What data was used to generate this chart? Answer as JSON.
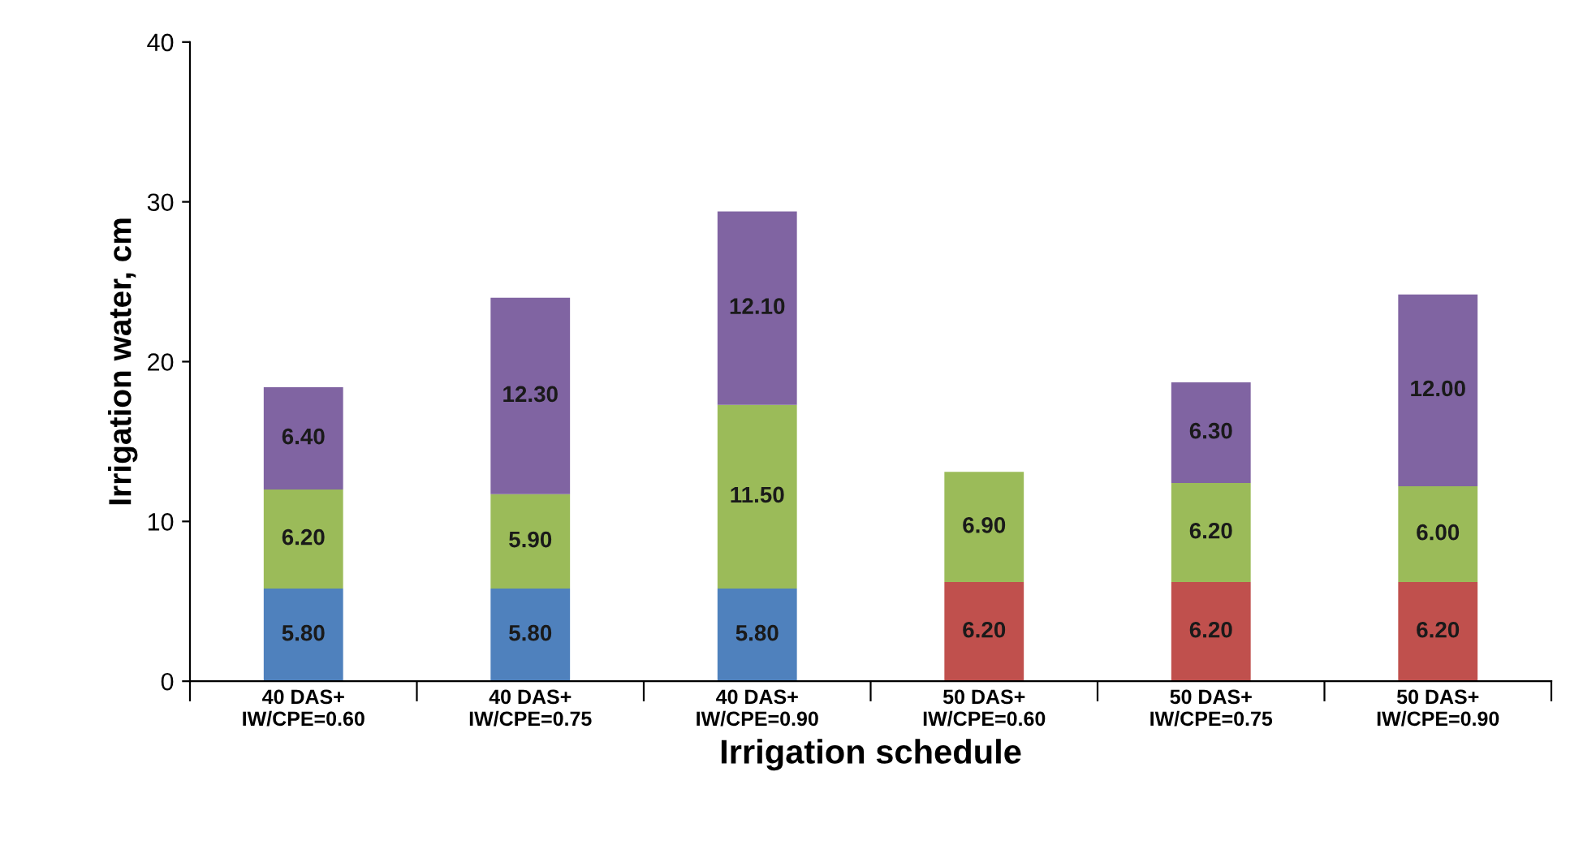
{
  "chart_data": {
    "type": "bar",
    "stacked": true,
    "xlabel": "Irrigation schedule",
    "ylabel": "Irrigation water, cm",
    "categories": [
      "40 DAS+\nIW/CPE=0.60",
      "40 DAS+\nIW/CPE=0.75",
      "40 DAS+\nIW/CPE=0.90",
      "50 DAS+\nIW/CPE=0.60",
      "50 DAS+\nIW/CPE=0.75",
      "50 DAS+\nIW/CPE=0.90"
    ],
    "series": [
      {
        "colors": [
          "#4f81bd",
          "#4f81bd",
          "#4f81bd",
          "#c0504d",
          "#c0504d",
          "#c0504d"
        ],
        "values": [
          5.8,
          5.8,
          5.8,
          6.2,
          6.2,
          6.2
        ],
        "value_labels": [
          "5.80",
          "5.80",
          "5.80",
          "6.20",
          "6.20",
          "6.20"
        ]
      },
      {
        "color": "#9bbb59",
        "values": [
          6.2,
          5.9,
          11.5,
          6.9,
          6.2,
          6.0
        ],
        "value_labels": [
          "6.20",
          "5.90",
          "11.50",
          "6.90",
          "6.20",
          "6.00"
        ]
      },
      {
        "color": "#8064a2",
        "values": [
          6.4,
          12.3,
          12.1,
          null,
          6.3,
          12.0
        ],
        "value_labels": [
          "6.40",
          "12.30",
          "12.10",
          null,
          "6.30",
          "12.00"
        ]
      }
    ],
    "ylim": [
      0,
      40
    ],
    "yticks": [
      0,
      10,
      20,
      30,
      40
    ],
    "grid": false
  }
}
